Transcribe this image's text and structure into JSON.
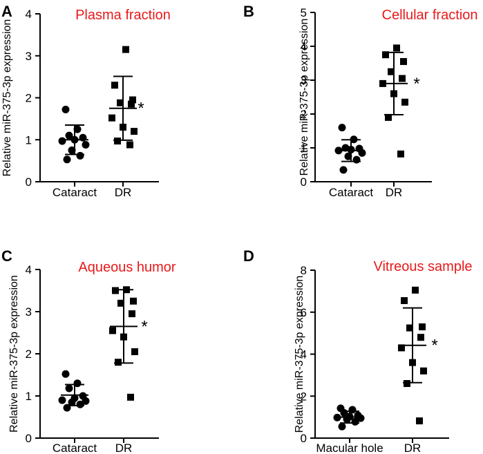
{
  "chart_data": [
    {
      "type": "scatter",
      "panel": "A",
      "title": "Plasma fraction",
      "ylabel": "Relative miR-375-3p expression",
      "xlabel": "",
      "ylim": [
        0,
        4
      ],
      "yticks": [
        0,
        1,
        2,
        3,
        4
      ],
      "categories": [
        "Cataract",
        "DR"
      ],
      "series": [
        {
          "name": "Cataract",
          "marker": "circle",
          "mean": 1.0,
          "sd": 0.35,
          "values": [
            1.72,
            1.25,
            1.1,
            1.05,
            1.0,
            0.97,
            0.88,
            0.75,
            0.62,
            0.53
          ]
        },
        {
          "name": "DR",
          "marker": "square",
          "mean": 1.75,
          "sd": 0.76,
          "values": [
            3.15,
            2.3,
            1.95,
            1.88,
            1.85,
            1.52,
            1.3,
            1.2,
            0.97,
            0.88
          ]
        }
      ],
      "annotations": [
        {
          "text": "*",
          "category": "DR"
        }
      ]
    },
    {
      "type": "scatter",
      "panel": "B",
      "title": "Cellular fraction",
      "ylabel": "Relative miR-375-3p expression",
      "xlabel": "",
      "ylim": [
        0,
        5
      ],
      "yticks": [
        0,
        1,
        2,
        3,
        4,
        5
      ],
      "categories": [
        "Cataract",
        "DR"
      ],
      "series": [
        {
          "name": "Cataract",
          "marker": "circle",
          "mean": 0.92,
          "sd": 0.32,
          "values": [
            1.6,
            1.25,
            1.0,
            0.98,
            0.95,
            0.92,
            0.85,
            0.75,
            0.65,
            0.35
          ]
        },
        {
          "name": "DR",
          "marker": "square",
          "mean": 2.9,
          "sd": 0.92,
          "values": [
            3.95,
            3.75,
            3.55,
            3.25,
            3.05,
            2.9,
            2.6,
            2.35,
            1.9,
            0.82
          ]
        }
      ],
      "annotations": [
        {
          "text": "*",
          "category": "DR"
        }
      ]
    },
    {
      "type": "scatter",
      "panel": "C",
      "title": "Aqueous humor",
      "ylabel": "Relative miR-375-3p expression",
      "xlabel": "",
      "ylim": [
        0,
        4
      ],
      "yticks": [
        0,
        1,
        2,
        3,
        4
      ],
      "categories": [
        "Cataract",
        "DR"
      ],
      "series": [
        {
          "name": "Cataract",
          "marker": "circle",
          "mean": 1.02,
          "sd": 0.25,
          "values": [
            1.52,
            1.3,
            1.18,
            1.0,
            0.95,
            0.9,
            0.88,
            0.85,
            0.8,
            0.72
          ]
        },
        {
          "name": "DR",
          "marker": "square",
          "mean": 2.65,
          "sd": 0.87,
          "values": [
            3.52,
            3.5,
            3.25,
            3.2,
            2.95,
            2.55,
            2.4,
            2.05,
            1.8,
            0.97
          ]
        }
      ],
      "annotations": [
        {
          "text": "*",
          "category": "DR"
        }
      ]
    },
    {
      "type": "scatter",
      "panel": "D",
      "title": "Vitreous sample",
      "ylabel": "Relative miR-375-3p expression",
      "xlabel": "",
      "ylim": [
        0,
        8
      ],
      "yticks": [
        0,
        2,
        4,
        6,
        8
      ],
      "categories": [
        "Macular hole",
        "DR"
      ],
      "series": [
        {
          "name": "Macular hole",
          "marker": "circle",
          "mean": 1.0,
          "sd": 0.28,
          "values": [
            1.42,
            1.35,
            1.2,
            1.08,
            1.02,
            0.98,
            0.95,
            0.9,
            0.78,
            0.55
          ]
        },
        {
          "name": "DR",
          "marker": "square",
          "mean": 4.42,
          "sd": 1.78,
          "values": [
            7.05,
            6.55,
            5.3,
            5.25,
            4.8,
            4.3,
            3.6,
            3.2,
            2.6,
            0.82
          ]
        }
      ],
      "annotations": [
        {
          "text": "*",
          "category": "DR"
        }
      ]
    }
  ]
}
